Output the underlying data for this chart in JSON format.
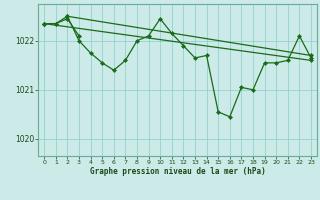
{
  "bg_color": "#cceae7",
  "grid_color": "#88cccc",
  "line_color": "#1a6b1a",
  "marker_color": "#1a6b1a",
  "xlabel": "Graphe pression niveau de la mer (hPa)",
  "ylim": [
    1019.65,
    1022.75
  ],
  "xlim": [
    -0.5,
    23.5
  ],
  "yticks": [
    1020,
    1021,
    1022
  ],
  "xticks": [
    0,
    1,
    2,
    3,
    4,
    5,
    6,
    7,
    8,
    9,
    10,
    11,
    12,
    13,
    14,
    15,
    16,
    17,
    18,
    19,
    20,
    21,
    22,
    23
  ],
  "series": [
    {
      "x": [
        0,
        1,
        2,
        3,
        4,
        5,
        6,
        7,
        8,
        9,
        10,
        11,
        12,
        13,
        14,
        15,
        16,
        17,
        18,
        19,
        20,
        21,
        22,
        23
      ],
      "y": [
        1022.35,
        1022.35,
        1022.5,
        1022.0,
        1021.75,
        1021.55,
        1021.4,
        1021.6,
        1022.0,
        1022.1,
        1022.45,
        1022.15,
        1021.9,
        1021.65,
        1021.7,
        1020.55,
        1020.45,
        1021.05,
        1021.0,
        1021.55,
        1021.55,
        1021.6,
        1022.1,
        1021.65
      ]
    },
    {
      "x": [
        0,
        1,
        2,
        3
      ],
      "y": [
        1022.35,
        1022.35,
        1022.45,
        1022.1
      ]
    },
    {
      "x": [
        0,
        23
      ],
      "y": [
        1022.35,
        1021.6
      ]
    },
    {
      "x": [
        2,
        23
      ],
      "y": [
        1022.5,
        1021.7
      ]
    }
  ]
}
